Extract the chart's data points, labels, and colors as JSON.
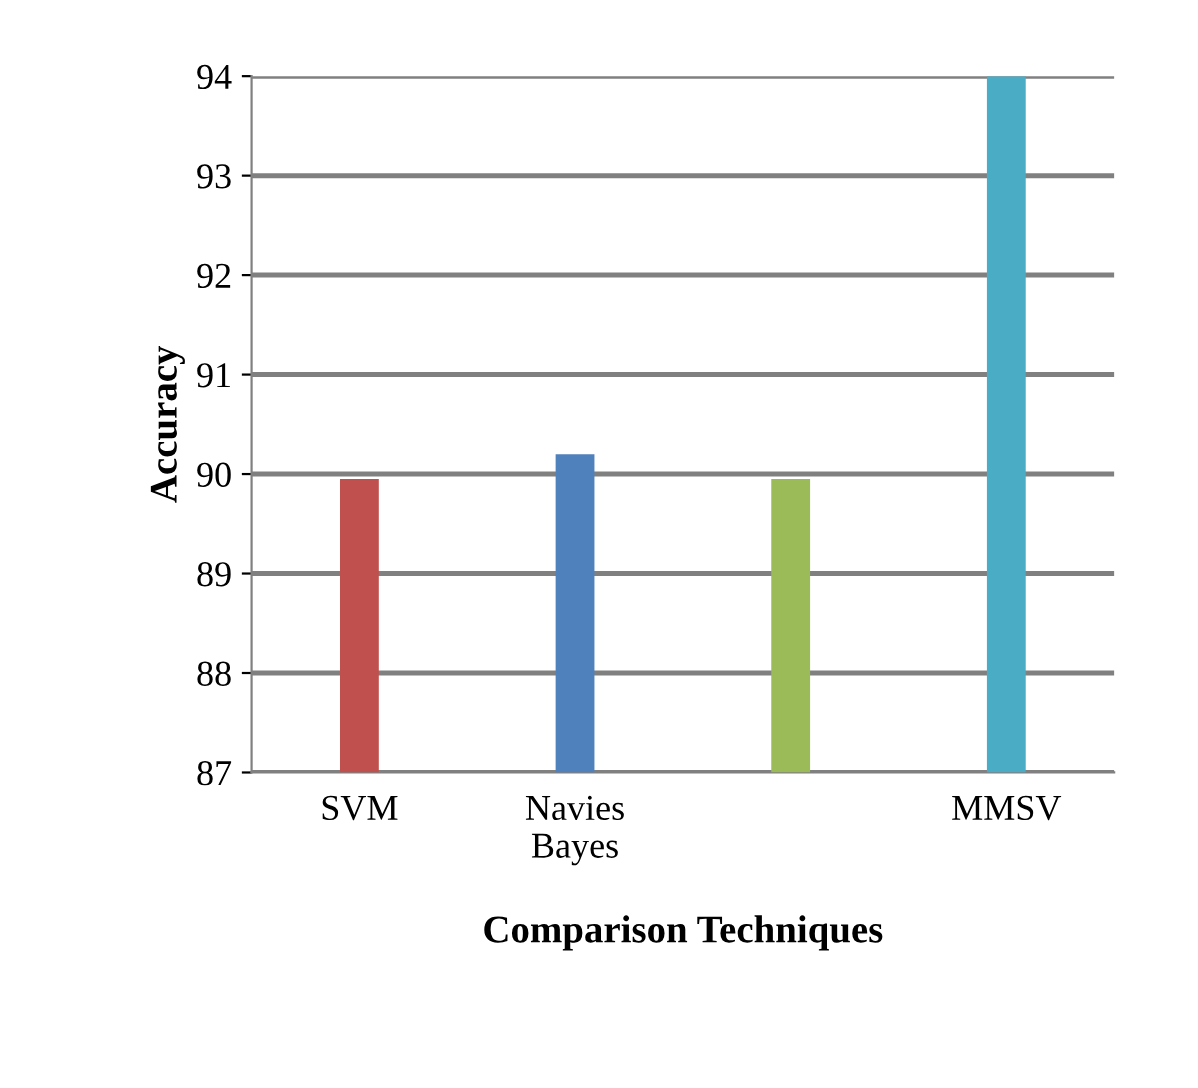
{
  "chart_data": {
    "type": "bar",
    "xlabel": "Comparison Techniques",
    "ylabel": "Accuracy",
    "categories": [
      "SVM",
      "Navies\nBayes",
      null,
      "MMSV"
    ],
    "values": [
      89.95,
      90.2,
      89.95,
      94.0
    ],
    "colors": [
      "#c0504d",
      "#4f81bd",
      "#9bbb59",
      "#4bacc6"
    ],
    "ylim": [
      87,
      94
    ],
    "yticks": [
      87,
      88,
      89,
      90,
      91,
      92,
      93,
      94
    ],
    "grid": "y"
  }
}
